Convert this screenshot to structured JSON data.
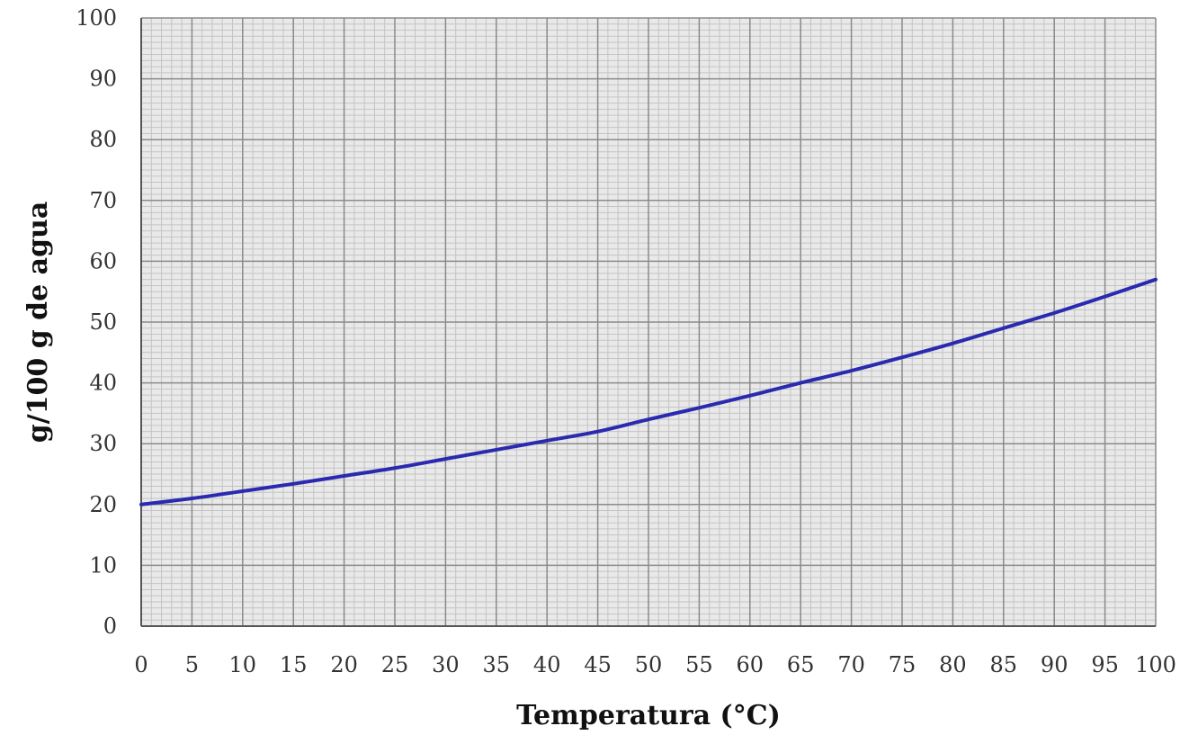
{
  "chart_data": {
    "type": "line",
    "title": "",
    "xlabel": "Temperatura (°C)",
    "ylabel": "g/100 g de agua",
    "xlim": [
      0,
      100
    ],
    "ylim": [
      0,
      100
    ],
    "x_ticks": [
      "0",
      "5",
      "10",
      "15",
      "20",
      "25",
      "30",
      "35",
      "40",
      "45",
      "50",
      "55",
      "60",
      "65",
      "70",
      "75",
      "80",
      "85",
      "90",
      "95",
      "100"
    ],
    "y_ticks": [
      "0",
      "10",
      "20",
      "30",
      "40",
      "50",
      "60",
      "70",
      "80",
      "90",
      "100"
    ],
    "grid": true,
    "legend": "none",
    "colors": {
      "line": "#2a2ab0",
      "grid_major": "#8a8a8a",
      "grid_minor": "#c4c4c4",
      "plot_bg": "#e9e9e9"
    },
    "series": [
      {
        "x": [
          0,
          5,
          10,
          15,
          20,
          25,
          30,
          35,
          40,
          45,
          50,
          55,
          60,
          65,
          70,
          75,
          80,
          85,
          90,
          95,
          100
        ],
        "values": [
          20,
          21,
          22.2,
          23.4,
          24.7,
          26,
          27.5,
          29,
          30.5,
          32,
          34,
          35.9,
          37.9,
          40,
          42,
          44.2,
          46.5,
          49,
          51.5,
          54.2,
          57
        ]
      }
    ]
  }
}
